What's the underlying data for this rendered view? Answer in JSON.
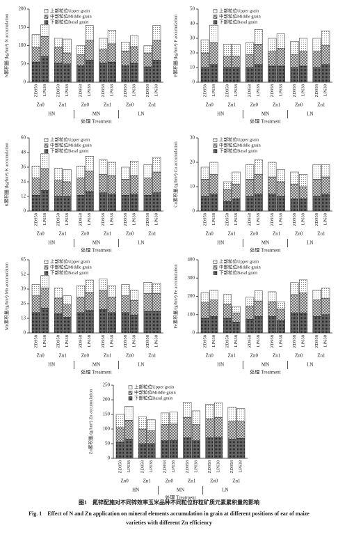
{
  "chart_data": [
    {
      "type": "bar",
      "stacked": true,
      "ylabel": "N累积量/(kg/hm²) N accumulation",
      "xlabel": "处理 Treatment",
      "categories": [
        "ZD958",
        "LP638",
        "ZD958",
        "LP638",
        "ZD958",
        "LP638",
        "ZD958",
        "LP638",
        "ZD958",
        "LP638",
        "ZD958",
        "LP638"
      ],
      "x_groups": [
        "Zn0",
        "Zn1",
        "Zn0",
        "Zn1",
        "Zn0",
        "Zn1"
      ],
      "x_supergroups": [
        "HN",
        "MN",
        "LN"
      ],
      "ylim": [
        0,
        200
      ],
      "yticks": [
        0,
        50,
        100,
        150,
        200
      ],
      "series": [
        {
          "name": "下部粒位Basal grain",
          "color": "#555555",
          "pattern": "basal",
          "values": [
            55,
            70,
            52,
            50,
            45,
            60,
            52,
            55,
            45,
            52,
            42,
            60
          ]
        },
        {
          "name": "中部粒位Middle grain",
          "color": "#999999",
          "pattern": "middle",
          "values": [
            40,
            55,
            43,
            30,
            30,
            55,
            38,
            50,
            40,
            45,
            38,
            55
          ]
        },
        {
          "name": "上部粒位Upper grain",
          "color": "#ffffff",
          "pattern": "upper",
          "values": [
            35,
            32,
            25,
            38,
            25,
            40,
            30,
            37,
            25,
            30,
            20,
            40
          ]
        }
      ]
    },
    {
      "type": "bar",
      "stacked": true,
      "ylabel": "P累积量/(kg/hm²) P accumulation",
      "xlabel": "处理 Treatment",
      "categories": [
        "ZD958",
        "LP638",
        "ZD958",
        "LP638",
        "ZD958",
        "LP638",
        "ZD958",
        "LP638",
        "ZD958",
        "LP638",
        "ZD958",
        "LP638"
      ],
      "x_groups": [
        "Zn0",
        "Zn1",
        "Zn0",
        "Zn1",
        "Zn0",
        "Zn1"
      ],
      "x_supergroups": [
        "HN",
        "MN",
        "LN"
      ],
      "ylim": [
        0,
        50
      ],
      "yticks": [
        0,
        10,
        20,
        30,
        40,
        50
      ],
      "series": [
        {
          "name": "下部粒位Basal grain",
          "color": "#555555",
          "pattern": "basal",
          "values": [
            10,
            12,
            10,
            10,
            10,
            12,
            11,
            11,
            10,
            11,
            10,
            12
          ]
        },
        {
          "name": "中部粒位Middle grain",
          "color": "#999999",
          "pattern": "middle",
          "values": [
            10,
            15,
            8,
            8,
            9,
            14,
            10,
            12,
            9,
            10,
            11,
            13
          ]
        },
        {
          "name": "上部粒位Upper grain",
          "color": "#ffffff",
          "pattern": "upper",
          "values": [
            9,
            12,
            8,
            8,
            8,
            10,
            9,
            10,
            9,
            9,
            9,
            10
          ]
        }
      ]
    },
    {
      "type": "bar",
      "stacked": true,
      "ylabel": "K累积量/(kg/hm²) K accumulation",
      "xlabel": "处理 Treatment",
      "categories": [
        "ZD958",
        "LP638",
        "ZD958",
        "LP638",
        "ZD958",
        "LP638",
        "ZD958",
        "LP638",
        "ZD958",
        "LP638",
        "ZD958",
        "LP638"
      ],
      "x_groups": [
        "Zn0",
        "Zn1",
        "Zn0",
        "Zn1",
        "Zn0",
        "Zn1"
      ],
      "x_supergroups": [
        "HN",
        "MN",
        "LN"
      ],
      "ylim": [
        0,
        60
      ],
      "yticks": [
        0,
        12,
        24,
        36,
        48,
        60
      ],
      "series": [
        {
          "name": "下部粒位Basal grain",
          "color": "#555555",
          "pattern": "basal",
          "values": [
            13,
            17,
            12,
            12,
            13,
            16,
            15,
            14,
            13,
            14,
            13,
            15
          ]
        },
        {
          "name": "中部粒位Middle grain",
          "color": "#999999",
          "pattern": "middle",
          "values": [
            14,
            18,
            13,
            12,
            14,
            17,
            15,
            15,
            13,
            15,
            14,
            17
          ]
        },
        {
          "name": "上部粒位Upper grain",
          "color": "#ffffff",
          "pattern": "upper",
          "values": [
            10,
            12,
            10,
            10,
            10,
            12,
            12,
            11,
            10,
            12,
            11,
            12
          ]
        }
      ]
    },
    {
      "type": "bar",
      "stacked": true,
      "ylabel": "Cu累积量/(g/hm²) Cu accumulation",
      "xlabel": "处理 Treatment",
      "categories": [
        "ZD958",
        "LP638",
        "ZD958",
        "LP638",
        "ZD958",
        "LP638",
        "ZD958",
        "LP638",
        "ZD958",
        "LP638",
        "ZD958",
        "LP638"
      ],
      "x_groups": [
        "Zn0",
        "Zn1",
        "Zn0",
        "Zn1",
        "Zn0",
        "Zn1"
      ],
      "x_supergroups": [
        "HN",
        "MN",
        "LN"
      ],
      "ylim": [
        0,
        30
      ],
      "yticks": [
        0,
        10,
        20,
        30
      ],
      "series": [
        {
          "name": "下部粒位Basal grain",
          "color": "#555555",
          "pattern": "basal",
          "values": [
            6,
            7,
            4,
            5,
            6,
            7,
            7,
            6,
            5,
            5,
            6,
            7
          ]
        },
        {
          "name": "中部粒位Middle grain",
          "color": "#999999",
          "pattern": "middle",
          "values": [
            7,
            8,
            5,
            6,
            7,
            8,
            7,
            6,
            6,
            5,
            7,
            7
          ]
        },
        {
          "name": "上部粒位Upper grain",
          "color": "#ffffff",
          "pattern": "upper",
          "values": [
            5,
            5,
            3,
            5,
            6,
            6,
            6,
            5,
            5,
            5,
            6,
            5
          ]
        }
      ]
    },
    {
      "type": "bar",
      "stacked": true,
      "ylabel": "Mn累积量/(g/hm²) Mn accumulation",
      "xlabel": "处理 Treatment",
      "categories": [
        "ZD958",
        "LP638",
        "ZD958",
        "LP638",
        "ZD958",
        "LP638",
        "ZD958",
        "LP638",
        "ZD958",
        "LP638",
        "ZD958",
        "LP638"
      ],
      "x_groups": [
        "Zn0",
        "Zn1",
        "Zn0",
        "Zn1",
        "Zn0",
        "Zn1"
      ],
      "x_supergroups": [
        "HN",
        "MN",
        "LN"
      ],
      "ylim": [
        0,
        65
      ],
      "yticks": [
        0,
        13,
        26,
        39,
        52,
        65
      ],
      "series": [
        {
          "name": "下部粒位Basal grain",
          "color": "#555555",
          "pattern": "basal",
          "values": [
            18,
            22,
            17,
            14,
            18,
            20,
            21,
            18,
            18,
            16,
            19,
            19
          ]
        },
        {
          "name": "中部粒位Middle grain",
          "color": "#999999",
          "pattern": "middle",
          "values": [
            15,
            18,
            14,
            11,
            14,
            16,
            17,
            14,
            15,
            13,
            16,
            16
          ]
        },
        {
          "name": "上部粒位Upper grain",
          "color": "#ffffff",
          "pattern": "upper",
          "values": [
            10,
            11,
            9,
            8,
            10,
            11,
            10,
            10,
            10,
            9,
            10,
            9
          ]
        }
      ]
    },
    {
      "type": "bar",
      "stacked": true,
      "ylabel": "Fe累积量/(g/hm²) Fe accumulation",
      "xlabel": "处理 Treatment",
      "categories": [
        "ZD958",
        "LP638",
        "ZD958",
        "LP638",
        "ZD958",
        "LP638",
        "ZD958",
        "LP638",
        "ZD958",
        "LP638",
        "ZD958",
        "LP638"
      ],
      "x_groups": [
        "Zn0",
        "Zn1",
        "Zn0",
        "Zn1",
        "Zn0",
        "Zn1"
      ],
      "x_supergroups": [
        "HN",
        "MN",
        "LN"
      ],
      "ylim": [
        0,
        400
      ],
      "yticks": [
        0,
        100,
        200,
        300,
        400
      ],
      "series": [
        {
          "name": "下部粒位Basal grain",
          "color": "#555555",
          "pattern": "basal",
          "values": [
            80,
            90,
            80,
            60,
            75,
            90,
            90,
            70,
            110,
            110,
            90,
            100
          ]
        },
        {
          "name": "中部粒位Middle grain",
          "color": "#999999",
          "pattern": "middle",
          "values": [
            85,
            90,
            75,
            50,
            70,
            85,
            80,
            60,
            100,
            110,
            90,
            90
          ]
        },
        {
          "name": "上部粒位Upper grain",
          "color": "#ffffff",
          "pattern": "upper",
          "values": [
            55,
            55,
            55,
            35,
            50,
            55,
            55,
            40,
            65,
            70,
            55,
            55
          ]
        }
      ]
    },
    {
      "type": "bar",
      "stacked": true,
      "ylabel": "Zn累积量/(g/hm²) Zn accumulation",
      "xlabel": "处理 Treatment",
      "categories": [
        "ZD958",
        "LP638",
        "ZD958",
        "LP638",
        "ZD958",
        "LP638",
        "ZD958",
        "LP638",
        "ZD958",
        "LP638",
        "ZD958",
        "LP638"
      ],
      "x_groups": [
        "Zn0",
        "Zn1",
        "Zn0",
        "Zn1",
        "Zn0",
        "Zn1"
      ],
      "x_supergroups": [
        "HN",
        "MN",
        "LN"
      ],
      "ylim": [
        0,
        250
      ],
      "yticks": [
        0,
        50,
        100,
        150,
        200,
        250
      ],
      "series": [
        {
          "name": "下部粒位Basal grain",
          "color": "#555555",
          "pattern": "basal",
          "values": [
            55,
            65,
            50,
            50,
            60,
            62,
            70,
            60,
            70,
            72,
            65,
            68
          ]
        },
        {
          "name": "中部粒位Middle grain",
          "color": "#999999",
          "pattern": "middle",
          "values": [
            50,
            65,
            50,
            45,
            55,
            55,
            70,
            55,
            65,
            68,
            60,
            57
          ]
        },
        {
          "name": "上部粒位Upper grain",
          "color": "#ffffff",
          "pattern": "upper",
          "values": [
            45,
            48,
            42,
            37,
            40,
            41,
            52,
            47,
            50,
            50,
            50,
            45
          ]
        }
      ]
    }
  ],
  "caption": {
    "zh": "图1　氮锌配施对不同锌效率玉米品种不同粒位籽粒矿质元素累积量的影响",
    "en": [
      "Fig. 1　Effect of N and Zn application on mineral elements accumulation in grain at different positions of ear of maize",
      "varieties with different Zn efficiency"
    ]
  }
}
